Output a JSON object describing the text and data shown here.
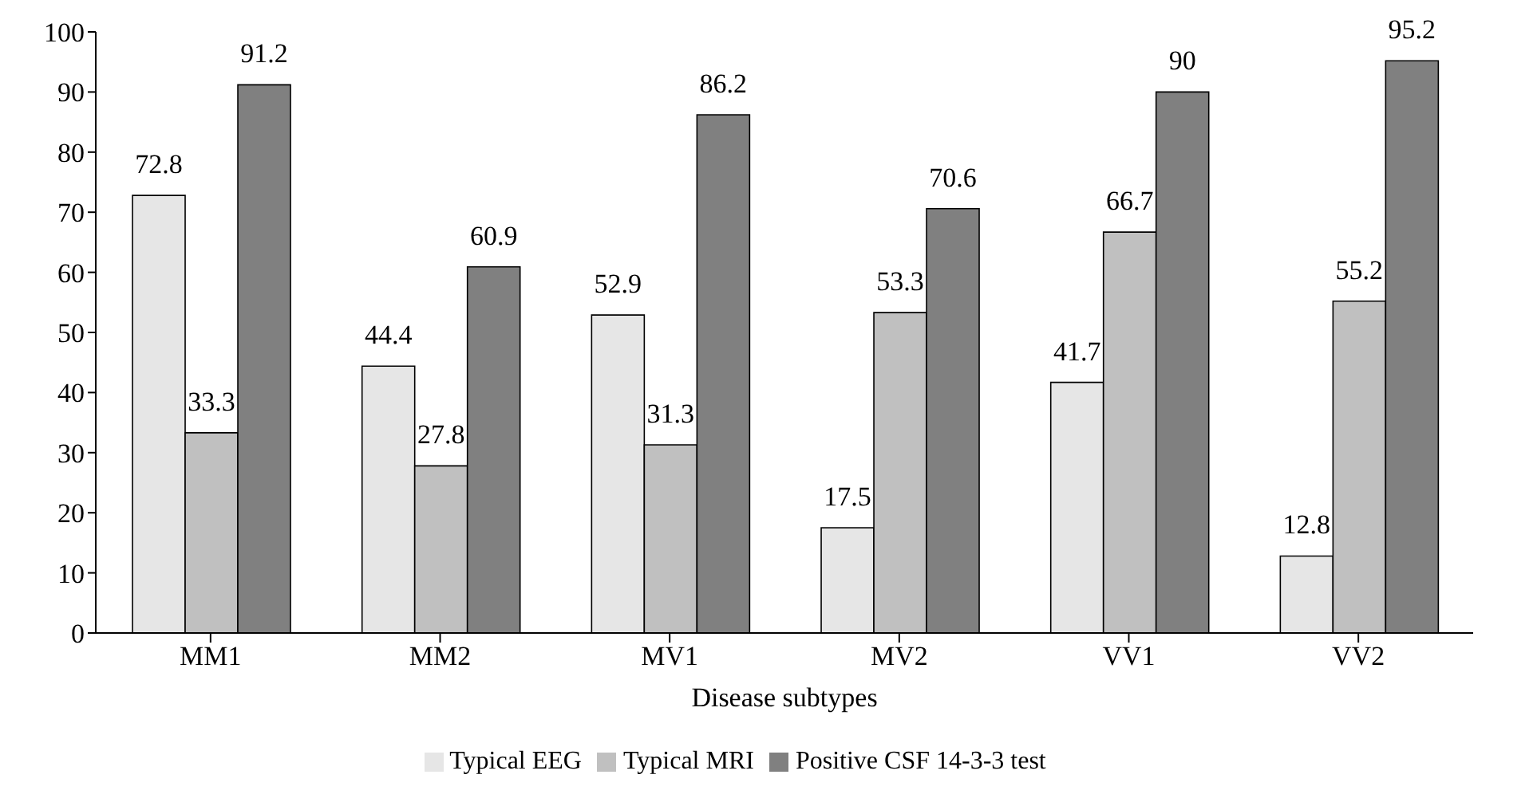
{
  "chart_data": {
    "type": "bar",
    "xlabel": "Disease subtypes",
    "categories": [
      "MM1",
      "MM2",
      "MV1",
      "MV2",
      "VV1",
      "VV2"
    ],
    "series": [
      {
        "name": "Typical EEG",
        "color": "#e6e6e6",
        "values": [
          72.8,
          44.4,
          52.9,
          17.5,
          41.7,
          12.8
        ]
      },
      {
        "name": "Typical MRI",
        "color": "#c0c0c0",
        "values": [
          33.3,
          27.8,
          31.3,
          53.3,
          66.7,
          55.2
        ]
      },
      {
        "name": "Positive CSF 14-3-3 test",
        "color": "#808080",
        "values": [
          91.2,
          60.9,
          86.2,
          70.6,
          90,
          95.2
        ]
      }
    ],
    "ylim": [
      0,
      100
    ],
    "yticks": [
      0,
      10,
      20,
      30,
      40,
      50,
      60,
      70,
      80,
      90,
      100
    ],
    "grid": false,
    "legend": "bottom",
    "data_labels": true
  }
}
